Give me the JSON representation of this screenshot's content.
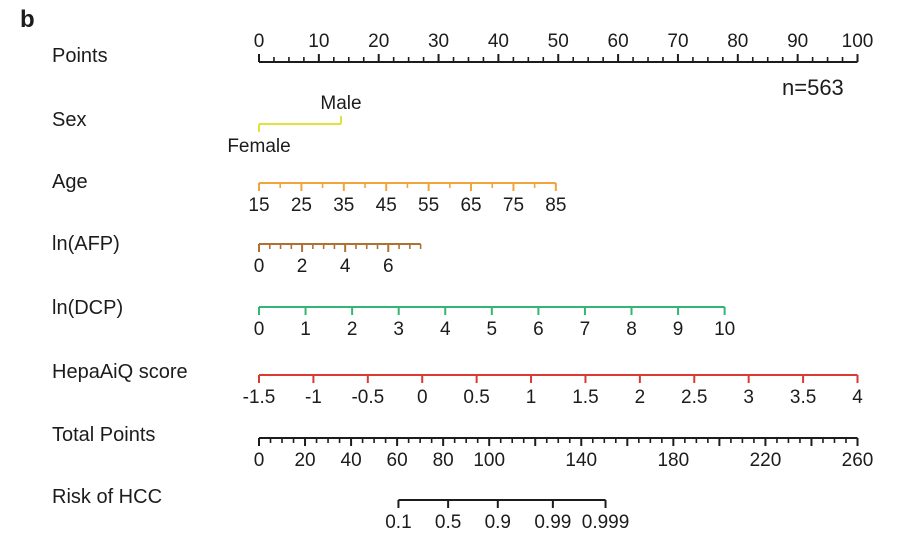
{
  "chart_data": {
    "type": "nomogram",
    "panel_label": "b",
    "annotation": "n=563",
    "points_scale": {
      "min": 0,
      "max": 100
    },
    "axes": [
      {
        "key": "points",
        "label": "Points",
        "color": "#1c1c1c",
        "domain": [
          0,
          100
        ],
        "span_points": [
          0,
          100
        ],
        "tick_side": "up",
        "label_side": "above",
        "minor_step": 2.5,
        "majors": [
          {
            "v": 0,
            "t": "0"
          },
          {
            "v": 10,
            "t": "10"
          },
          {
            "v": 20,
            "t": "20"
          },
          {
            "v": 30,
            "t": "30"
          },
          {
            "v": 40,
            "t": "40"
          },
          {
            "v": 50,
            "t": "50"
          },
          {
            "v": 60,
            "t": "60"
          },
          {
            "v": 70,
            "t": "70"
          },
          {
            "v": 80,
            "t": "80"
          },
          {
            "v": 90,
            "t": "90"
          },
          {
            "v": 100,
            "t": "100"
          }
        ]
      },
      {
        "key": "sex",
        "label": "Sex",
        "color": "#dfe33a",
        "domain": [
          0,
          1
        ],
        "span_points": [
          0,
          13.7
        ],
        "tick_side": "down",
        "label_side": "below",
        "majors": [
          {
            "v": 0,
            "t": "Female",
            "tick_side": "down",
            "label_side": "below"
          },
          {
            "v": 1,
            "t": "Male",
            "tick_side": "up",
            "label_side": "above"
          }
        ]
      },
      {
        "key": "age",
        "label": "Age",
        "color": "#f2a43b",
        "domain": [
          15,
          85
        ],
        "span_points": [
          0,
          49.6
        ],
        "tick_side": "down",
        "label_side": "below",
        "minor_step": 5,
        "majors": [
          {
            "v": 15,
            "t": "15"
          },
          {
            "v": 25,
            "t": "25"
          },
          {
            "v": 35,
            "t": "35"
          },
          {
            "v": 45,
            "t": "45"
          },
          {
            "v": 55,
            "t": "55"
          },
          {
            "v": 65,
            "t": "65"
          },
          {
            "v": 75,
            "t": "75"
          },
          {
            "v": 85,
            "t": "85"
          }
        ]
      },
      {
        "key": "ln_afp",
        "label": "ln(AFP)",
        "color": "#b07031",
        "domain": [
          0,
          7.5
        ],
        "span_points": [
          0,
          27
        ],
        "tick_side": "down",
        "label_side": "below",
        "minor_step": 0.5,
        "majors": [
          {
            "v": 0,
            "t": "0"
          },
          {
            "v": 2,
            "t": "2"
          },
          {
            "v": 4,
            "t": "4"
          },
          {
            "v": 6,
            "t": "6"
          }
        ]
      },
      {
        "key": "ln_dcp",
        "label": "ln(DCP)",
        "color": "#35b573",
        "domain": [
          0,
          10
        ],
        "span_points": [
          0,
          77.8
        ],
        "tick_side": "down",
        "label_side": "below",
        "majors": [
          {
            "v": 0,
            "t": "0"
          },
          {
            "v": 1,
            "t": "1"
          },
          {
            "v": 2,
            "t": "2"
          },
          {
            "v": 3,
            "t": "3"
          },
          {
            "v": 4,
            "t": "4"
          },
          {
            "v": 5,
            "t": "5"
          },
          {
            "v": 6,
            "t": "6"
          },
          {
            "v": 7,
            "t": "7"
          },
          {
            "v": 8,
            "t": "8"
          },
          {
            "v": 9,
            "t": "9"
          },
          {
            "v": 10,
            "t": "10"
          }
        ]
      },
      {
        "key": "hepaaiq",
        "label": "HepaAiQ score",
        "color": "#da3a31",
        "domain": [
          -1.5,
          4
        ],
        "span_points": [
          0,
          100
        ],
        "tick_side": "down",
        "label_side": "below",
        "majors": [
          {
            "v": -1.5,
            "t": "-1.5"
          },
          {
            "v": -1,
            "t": "-1"
          },
          {
            "v": -0.5,
            "t": "-0.5"
          },
          {
            "v": 0,
            "t": "0"
          },
          {
            "v": 0.5,
            "t": "0.5"
          },
          {
            "v": 1,
            "t": "1"
          },
          {
            "v": 1.5,
            "t": "1.5"
          },
          {
            "v": 2,
            "t": "2"
          },
          {
            "v": 2.5,
            "t": "2.5"
          },
          {
            "v": 3,
            "t": "3"
          },
          {
            "v": 3.5,
            "t": "3.5"
          },
          {
            "v": 4,
            "t": "4"
          }
        ]
      },
      {
        "key": "total",
        "label": "Total Points",
        "color": "#1c1c1c",
        "domain": [
          0,
          260
        ],
        "span_points": [
          0,
          100
        ],
        "tick_side": "down",
        "label_side": "below",
        "minor_step": 5,
        "majors": [
          {
            "v": 0,
            "t": "0"
          },
          {
            "v": 20,
            "t": "20"
          },
          {
            "v": 40,
            "t": "40"
          },
          {
            "v": 60,
            "t": "60"
          },
          {
            "v": 80,
            "t": "80"
          },
          {
            "v": 100,
            "t": "100"
          },
          {
            "v": 120,
            "t": ""
          },
          {
            "v": 140,
            "t": "140"
          },
          {
            "v": 160,
            "t": ""
          },
          {
            "v": 180,
            "t": "180"
          },
          {
            "v": 200,
            "t": ""
          },
          {
            "v": 220,
            "t": "220"
          },
          {
            "v": 240,
            "t": ""
          },
          {
            "v": 260,
            "t": "260"
          }
        ]
      },
      {
        "key": "risk",
        "label": "Risk of HCC",
        "color": "#1c1c1c",
        "domain": [
          23.3,
          57.9
        ],
        "span_points": [
          23.3,
          57.9
        ],
        "tick_side": "down",
        "label_side": "below",
        "majors": [
          {
            "v": 23.3,
            "t": "0.1"
          },
          {
            "v": 31.6,
            "t": "0.5"
          },
          {
            "v": 39.9,
            "t": "0.9"
          },
          {
            "v": 49.1,
            "t": "0.99"
          },
          {
            "v": 57.9,
            "t": "0.999"
          }
        ]
      }
    ]
  }
}
